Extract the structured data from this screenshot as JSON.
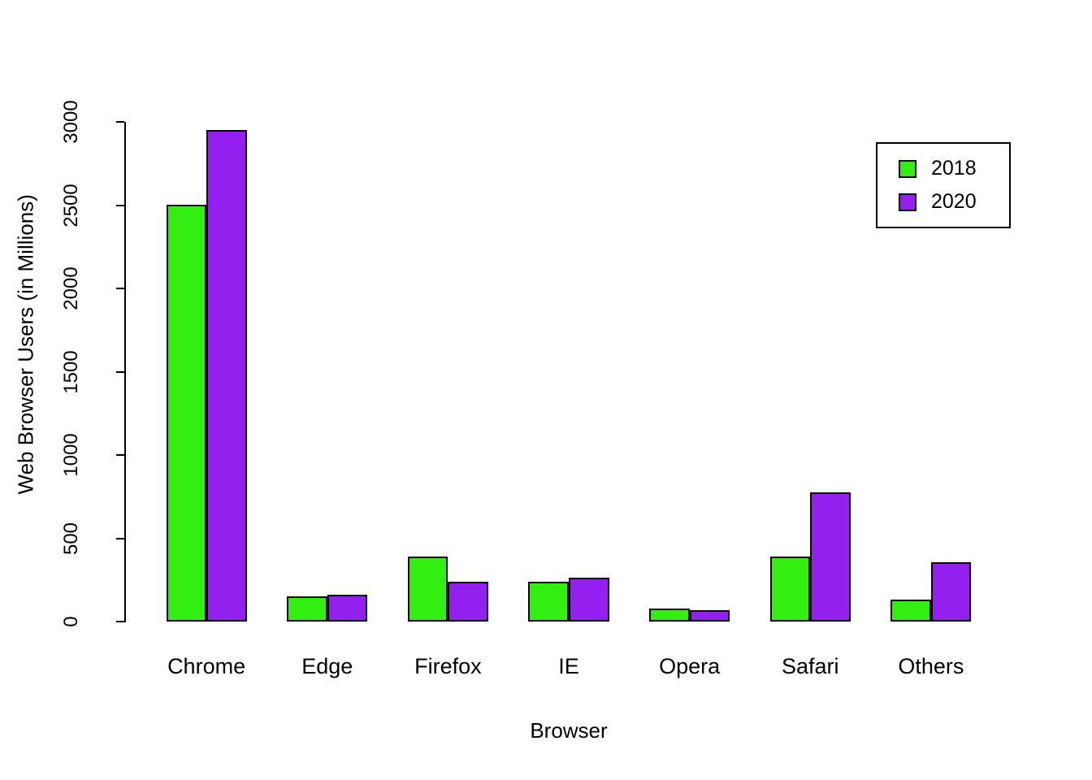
{
  "chart_data": {
    "type": "bar",
    "title": "",
    "xlabel": "Browser",
    "ylabel": "Web Browser Users (in Millions)",
    "categories": [
      "Chrome",
      "Edge",
      "Firefox",
      "IE",
      "Opera",
      "Safari",
      "Others"
    ],
    "series": [
      {
        "name": "2018",
        "color": "#33EE11",
        "values": [
          2500,
          150,
          390,
          240,
          80,
          390,
          130
        ]
      },
      {
        "name": "2020",
        "color": "#9320EE",
        "values": [
          2950,
          160,
          240,
          265,
          70,
          775,
          355
        ]
      }
    ],
    "ylim": [
      0,
      3000
    ],
    "yticks": [
      0,
      500,
      1000,
      1500,
      2000,
      2500,
      3000
    ],
    "legend_position": "top-right",
    "grid": false,
    "bar_border_color": "#000000"
  },
  "legend": {
    "items": [
      {
        "label": "2018",
        "color": "#33EE11"
      },
      {
        "label": "2020",
        "color": "#9320EE"
      }
    ]
  }
}
